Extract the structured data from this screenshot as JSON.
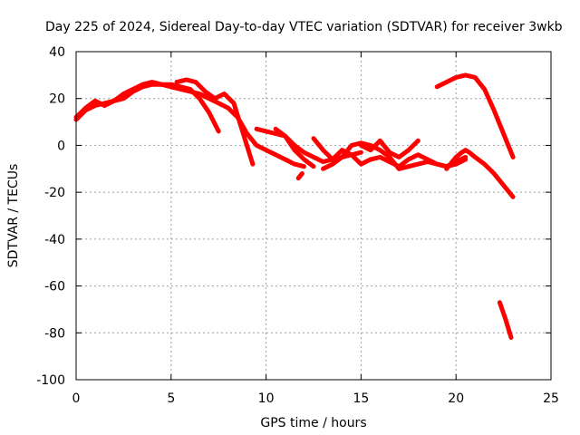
{
  "chart_data": {
    "type": "line",
    "title": "Day 225 of 2024, Sidereal Day-to-day VTEC variation (SDTVAR) for receiver 3wkb",
    "xlabel": "GPS time / hours",
    "ylabel": "SDTVAR / TECUs",
    "xlim": [
      0,
      25
    ],
    "ylim": [
      -100,
      40
    ],
    "x_ticks": [
      0,
      5,
      10,
      15,
      20,
      25
    ],
    "y_ticks": [
      -100,
      -80,
      -60,
      -40,
      -20,
      0,
      20,
      40
    ],
    "x_tick_labels": [
      "0",
      "5",
      "10",
      "15",
      "20",
      "25"
    ],
    "y_tick_labels": [
      "-100",
      "-80",
      "-60",
      "-40",
      "-20",
      "0",
      "20",
      "40"
    ],
    "grid": true,
    "color": "#ff0000",
    "series": [
      {
        "name": "trace-1",
        "x": [
          0.0,
          0.5,
          1.0,
          1.5,
          2.0,
          2.5,
          3.0,
          3.5,
          4.0,
          4.5,
          5.0,
          5.5,
          6.0,
          6.5,
          7.0,
          7.5,
          8.0,
          8.5,
          9.0,
          9.5,
          10.0,
          10.5,
          11.0,
          11.5,
          12.0
        ],
        "y": [
          11,
          15,
          17,
          18,
          19,
          20,
          23,
          25,
          26,
          26,
          25,
          24,
          23,
          22,
          20,
          18,
          16,
          12,
          5,
          0,
          -2,
          -4,
          -6,
          -8,
          -9
        ]
      },
      {
        "name": "trace-2",
        "x": [
          0.0,
          0.5,
          1.0,
          1.5,
          2.0,
          2.5,
          3.0,
          3.5,
          4.0,
          4.5,
          5.0,
          5.5,
          6.0,
          6.5,
          7.0,
          7.5
        ],
        "y": [
          12,
          16,
          19,
          17,
          19,
          22,
          24,
          26,
          27,
          26,
          26,
          25,
          24,
          20,
          14,
          6
        ]
      },
      {
        "name": "trace-3",
        "x": [
          5.3,
          5.8,
          6.3,
          6.8,
          7.3,
          7.8,
          8.3,
          8.8,
          9.3
        ],
        "y": [
          27,
          28,
          27,
          23,
          20,
          22,
          18,
          5,
          -8
        ]
      },
      {
        "name": "trace-4",
        "x": [
          9.5,
          10.0,
          10.5,
          11.0,
          11.5,
          12.0,
          12.5
        ],
        "y": [
          7,
          6,
          5,
          4,
          -2,
          -6,
          -9
        ]
      },
      {
        "name": "trace-5",
        "x": [
          10.5,
          11.0,
          11.5,
          12.0,
          12.5,
          13.0,
          13.5,
          14.0,
          14.5,
          15.0
        ],
        "y": [
          7,
          4,
          0,
          -3,
          -5,
          -7,
          -6,
          -5,
          -4,
          -3
        ]
      },
      {
        "name": "trace-6",
        "x": [
          12.5,
          13.0,
          13.5,
          14.0,
          14.5,
          15.0,
          15.5,
          16.0,
          16.5,
          17.0,
          17.5,
          18.0,
          18.5,
          19.0,
          19.5,
          20.0,
          20.5
        ],
        "y": [
          3,
          -2,
          -6,
          -2,
          -4,
          -8,
          -6,
          -5,
          -7,
          -9,
          -6,
          -4,
          -6,
          -8,
          -9,
          -8,
          -6
        ]
      },
      {
        "name": "trace-7",
        "x": [
          13.0,
          13.5,
          14.0,
          14.5,
          15.0,
          15.5,
          16.0,
          16.5,
          17.0,
          17.5,
          18.0,
          18.5,
          19.0,
          19.5,
          20.0,
          20.5
        ],
        "y": [
          -10,
          -8,
          -5,
          0,
          1,
          0,
          -2,
          -5,
          -10,
          -9,
          -8,
          -7,
          -8,
          -9,
          -7,
          -5
        ]
      },
      {
        "name": "trace-8",
        "x": [
          15.0,
          15.5,
          16.0,
          16.5,
          17.0,
          17.5,
          18.0
        ],
        "y": [
          0,
          -2,
          2,
          -3,
          -5,
          -2,
          2
        ]
      },
      {
        "name": "trace-9",
        "x": [
          11.7,
          11.9
        ],
        "y": [
          -14,
          -12
        ]
      },
      {
        "name": "trace-10",
        "x": [
          19.5,
          20.0,
          20.3,
          20.5,
          20.7,
          21.0,
          21.5,
          22.0,
          22.5,
          23.0
        ],
        "y": [
          -10,
          -5,
          -3,
          -2,
          -3,
          -5,
          -8,
          -12,
          -17,
          -22
        ]
      },
      {
        "name": "trace-11",
        "x": [
          19.0,
          19.5,
          20.0,
          20.5,
          21.0,
          21.5,
          22.0,
          22.5,
          23.0
        ],
        "y": [
          25,
          27,
          29,
          30,
          29,
          24,
          15,
          5,
          -5
        ]
      },
      {
        "name": "trace-12",
        "x": [
          22.3,
          22.6,
          22.9
        ],
        "y": [
          -67,
          -74,
          -82
        ]
      }
    ]
  }
}
